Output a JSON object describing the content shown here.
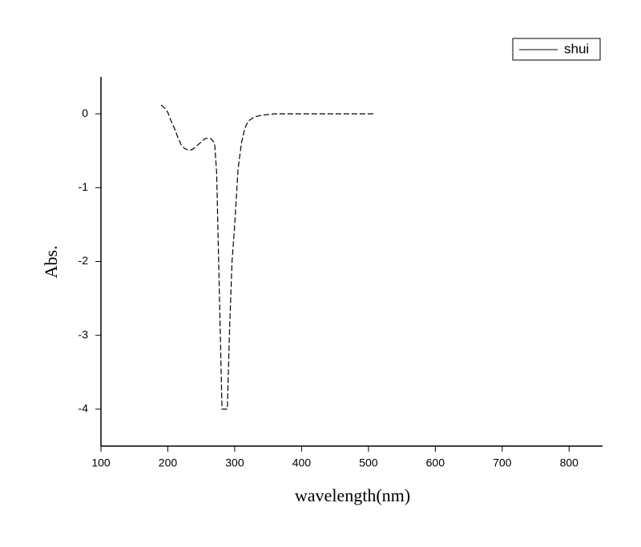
{
  "chart_data": {
    "type": "line",
    "x_label": "wavelength(nm)",
    "y_label": "Abs.",
    "x": [
      190,
      195,
      200,
      205,
      210,
      215,
      220,
      225,
      230,
      235,
      240,
      245,
      250,
      255,
      260,
      265,
      270,
      273,
      276,
      279,
      281,
      289,
      292,
      296,
      300,
      305,
      310,
      315,
      320,
      330,
      340,
      350,
      360,
      380,
      400,
      450,
      500,
      510
    ],
    "series": [
      {
        "name": "shui",
        "color": "#000000",
        "values": [
          0.12,
          0.08,
          0.02,
          -0.1,
          -0.2,
          -0.32,
          -0.42,
          -0.47,
          -0.49,
          -0.49,
          -0.46,
          -0.42,
          -0.38,
          -0.34,
          -0.33,
          -0.34,
          -0.4,
          -0.8,
          -2.0,
          -3.2,
          -4.0,
          -4.0,
          -3.0,
          -2.0,
          -1.5,
          -0.75,
          -0.4,
          -0.2,
          -0.1,
          -0.04,
          -0.02,
          -0.01,
          0,
          0,
          0,
          0,
          0,
          0
        ]
      }
    ],
    "xlim": [
      100,
      850
    ],
    "xticks": [
      100,
      200,
      300,
      400,
      500,
      600,
      700,
      800
    ],
    "ylim": [
      -4.5,
      0.5
    ],
    "yticks": [
      0,
      -1,
      -2,
      -3,
      -4
    ],
    "legend": "top-right"
  }
}
